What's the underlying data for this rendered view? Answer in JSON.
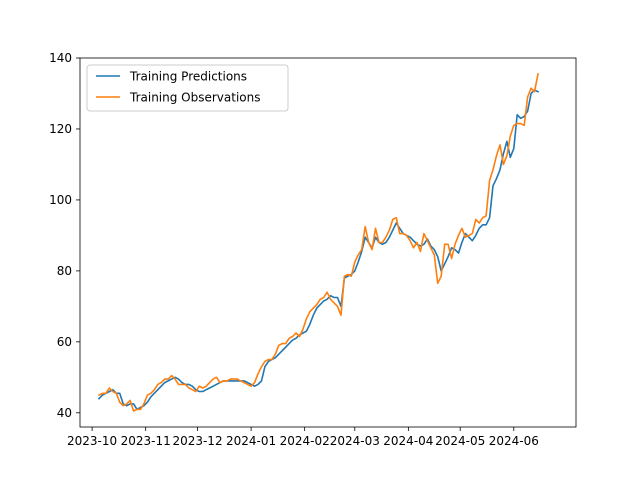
{
  "chart_data": {
    "type": "line",
    "title": "",
    "xlabel": "",
    "ylabel": "",
    "x_axis": {
      "min": "2023-09-24",
      "max": "2024-07-07",
      "ticks": [
        {
          "date": "2023-10-01",
          "label": "2023-10"
        },
        {
          "date": "2023-11-01",
          "label": "2023-11"
        },
        {
          "date": "2023-12-01",
          "label": "2023-12"
        },
        {
          "date": "2024-01-01",
          "label": "2024-01"
        },
        {
          "date": "2024-02-01",
          "label": "2024-02"
        },
        {
          "date": "2024-03-01",
          "label": "2024-03"
        },
        {
          "date": "2024-04-01",
          "label": "2024-04"
        },
        {
          "date": "2024-05-01",
          "label": "2024-05"
        },
        {
          "date": "2024-06-01",
          "label": "2024-06"
        }
      ]
    },
    "y_axis": {
      "min": 36,
      "max": 140,
      "ticks": [
        40,
        60,
        80,
        100,
        120,
        140
      ]
    },
    "grid": false,
    "legend_position": "top-left",
    "series": [
      {
        "name": "Training Predictions",
        "color": "#1f77b4",
        "points": [
          [
            "2023-10-05",
            44.0
          ],
          [
            "2023-10-07",
            45.0
          ],
          [
            "2023-10-09",
            45.5
          ],
          [
            "2023-10-11",
            46.0
          ],
          [
            "2023-10-13",
            46.5
          ],
          [
            "2023-10-15",
            45.5
          ],
          [
            "2023-10-17",
            45.5
          ],
          [
            "2023-10-19",
            42.5
          ],
          [
            "2023-10-21",
            42.0
          ],
          [
            "2023-10-23",
            42.5
          ],
          [
            "2023-10-25",
            42.5
          ],
          [
            "2023-10-27",
            41.0
          ],
          [
            "2023-10-29",
            41.5
          ],
          [
            "2023-10-31",
            42.0
          ],
          [
            "2023-11-02",
            43.0
          ],
          [
            "2023-11-04",
            44.5
          ],
          [
            "2023-11-06",
            45.5
          ],
          [
            "2023-11-08",
            46.5
          ],
          [
            "2023-11-10",
            47.5
          ],
          [
            "2023-11-12",
            48.5
          ],
          [
            "2023-11-14",
            49.0
          ],
          [
            "2023-11-16",
            49.5
          ],
          [
            "2023-11-18",
            50.0
          ],
          [
            "2023-11-20",
            49.5
          ],
          [
            "2023-11-22",
            48.5
          ],
          [
            "2023-11-24",
            48.0
          ],
          [
            "2023-11-26",
            48.0
          ],
          [
            "2023-11-28",
            47.5
          ],
          [
            "2023-11-30",
            46.5
          ],
          [
            "2023-12-02",
            46.0
          ],
          [
            "2023-12-04",
            46.0
          ],
          [
            "2023-12-06",
            46.5
          ],
          [
            "2023-12-08",
            47.0
          ],
          [
            "2023-12-10",
            47.5
          ],
          [
            "2023-12-12",
            48.0
          ],
          [
            "2023-12-14",
            48.5
          ],
          [
            "2023-12-16",
            49.0
          ],
          [
            "2023-12-18",
            49.0
          ],
          [
            "2023-12-20",
            49.0
          ],
          [
            "2023-12-22",
            49.0
          ],
          [
            "2023-12-24",
            49.0
          ],
          [
            "2023-12-26",
            49.0
          ],
          [
            "2023-12-28",
            49.0
          ],
          [
            "2023-12-30",
            48.5
          ],
          [
            "2024-01-01",
            48.0
          ],
          [
            "2024-01-03",
            47.5
          ],
          [
            "2024-01-05",
            48.0
          ],
          [
            "2024-01-07",
            49.0
          ],
          [
            "2024-01-09",
            53.0
          ],
          [
            "2024-01-11",
            54.5
          ],
          [
            "2024-01-13",
            55.0
          ],
          [
            "2024-01-15",
            55.5
          ],
          [
            "2024-01-17",
            56.5
          ],
          [
            "2024-01-19",
            57.5
          ],
          [
            "2024-01-21",
            58.5
          ],
          [
            "2024-01-23",
            59.5
          ],
          [
            "2024-01-25",
            60.5
          ],
          [
            "2024-01-27",
            61.0
          ],
          [
            "2024-01-29",
            62.0
          ],
          [
            "2024-01-31",
            62.5
          ],
          [
            "2024-02-02",
            63.0
          ],
          [
            "2024-02-04",
            65.0
          ],
          [
            "2024-02-06",
            67.5
          ],
          [
            "2024-02-08",
            69.5
          ],
          [
            "2024-02-10",
            70.5
          ],
          [
            "2024-02-12",
            71.5
          ],
          [
            "2024-02-14",
            72.0
          ],
          [
            "2024-02-16",
            73.0
          ],
          [
            "2024-02-18",
            72.5
          ],
          [
            "2024-02-20",
            72.5
          ],
          [
            "2024-02-22",
            70.0
          ],
          [
            "2024-02-24",
            78.0
          ],
          [
            "2024-02-26",
            78.5
          ],
          [
            "2024-02-28",
            79.0
          ],
          [
            "2024-03-01",
            80.0
          ],
          [
            "2024-03-03",
            82.5
          ],
          [
            "2024-03-05",
            85.5
          ],
          [
            "2024-03-07",
            89.5
          ],
          [
            "2024-03-09",
            88.0
          ],
          [
            "2024-03-11",
            86.5
          ],
          [
            "2024-03-13",
            89.5
          ],
          [
            "2024-03-15",
            88.0
          ],
          [
            "2024-03-17",
            87.5
          ],
          [
            "2024-03-19",
            88.0
          ],
          [
            "2024-03-21",
            89.5
          ],
          [
            "2024-03-23",
            91.5
          ],
          [
            "2024-03-25",
            93.5
          ],
          [
            "2024-03-27",
            92.0
          ],
          [
            "2024-03-29",
            90.5
          ],
          [
            "2024-03-31",
            90.0
          ],
          [
            "2024-04-02",
            89.5
          ],
          [
            "2024-04-04",
            88.5
          ],
          [
            "2024-04-06",
            87.5
          ],
          [
            "2024-04-08",
            87.0
          ],
          [
            "2024-04-10",
            87.5
          ],
          [
            "2024-04-12",
            89.0
          ],
          [
            "2024-04-14",
            87.0
          ],
          [
            "2024-04-16",
            86.0
          ],
          [
            "2024-04-18",
            84.0
          ],
          [
            "2024-04-20",
            80.0
          ],
          [
            "2024-04-22",
            82.0
          ],
          [
            "2024-04-24",
            84.0
          ],
          [
            "2024-04-26",
            86.5
          ],
          [
            "2024-04-28",
            86.0
          ],
          [
            "2024-04-30",
            85.0
          ],
          [
            "2024-05-02",
            88.0
          ],
          [
            "2024-05-04",
            90.5
          ],
          [
            "2024-05-06",
            89.5
          ],
          [
            "2024-05-08",
            88.5
          ],
          [
            "2024-05-10",
            90.0
          ],
          [
            "2024-05-12",
            92.0
          ],
          [
            "2024-05-14",
            93.0
          ],
          [
            "2024-05-16",
            93.0
          ],
          [
            "2024-05-18",
            95.0
          ],
          [
            "2024-05-20",
            104.0
          ],
          [
            "2024-05-22",
            106.0
          ],
          [
            "2024-05-24",
            108.5
          ],
          [
            "2024-05-26",
            113.0
          ],
          [
            "2024-05-28",
            116.5
          ],
          [
            "2024-05-30",
            112.0
          ],
          [
            "2024-06-01",
            114.5
          ],
          [
            "2024-06-03",
            124.0
          ],
          [
            "2024-06-05",
            123.0
          ],
          [
            "2024-06-07",
            123.5
          ],
          [
            "2024-06-09",
            125.0
          ],
          [
            "2024-06-11",
            130.0
          ],
          [
            "2024-06-13",
            131.0
          ],
          [
            "2024-06-15",
            130.5
          ]
        ]
      },
      {
        "name": "Training Observations",
        "color": "#ff7f0e",
        "points": [
          [
            "2023-10-05",
            45.0
          ],
          [
            "2023-10-07",
            45.5
          ],
          [
            "2023-10-09",
            45.5
          ],
          [
            "2023-10-11",
            47.0
          ],
          [
            "2023-10-13",
            46.0
          ],
          [
            "2023-10-15",
            45.5
          ],
          [
            "2023-10-17",
            43.0
          ],
          [
            "2023-10-19",
            42.0
          ],
          [
            "2023-10-21",
            42.5
          ],
          [
            "2023-10-23",
            43.5
          ],
          [
            "2023-10-25",
            40.5
          ],
          [
            "2023-10-27",
            41.0
          ],
          [
            "2023-10-29",
            41.0
          ],
          [
            "2023-10-31",
            42.5
          ],
          [
            "2023-11-02",
            45.0
          ],
          [
            "2023-11-04",
            45.5
          ],
          [
            "2023-11-06",
            46.5
          ],
          [
            "2023-11-08",
            48.0
          ],
          [
            "2023-11-10",
            48.5
          ],
          [
            "2023-11-12",
            49.5
          ],
          [
            "2023-11-14",
            49.5
          ],
          [
            "2023-11-16",
            50.5
          ],
          [
            "2023-11-18",
            49.5
          ],
          [
            "2023-11-20",
            48.0
          ],
          [
            "2023-11-22",
            48.0
          ],
          [
            "2023-11-24",
            48.0
          ],
          [
            "2023-11-26",
            47.0
          ],
          [
            "2023-11-28",
            46.5
          ],
          [
            "2023-11-30",
            46.0
          ],
          [
            "2023-12-02",
            47.5
          ],
          [
            "2023-12-04",
            47.0
          ],
          [
            "2023-12-06",
            47.5
          ],
          [
            "2023-12-08",
            48.5
          ],
          [
            "2023-12-10",
            49.5
          ],
          [
            "2023-12-12",
            50.0
          ],
          [
            "2023-12-14",
            48.5
          ],
          [
            "2023-12-16",
            49.0
          ],
          [
            "2023-12-18",
            49.0
          ],
          [
            "2023-12-20",
            49.5
          ],
          [
            "2023-12-22",
            49.5
          ],
          [
            "2023-12-24",
            49.5
          ],
          [
            "2023-12-26",
            49.0
          ],
          [
            "2023-12-28",
            48.5
          ],
          [
            "2023-12-30",
            48.0
          ],
          [
            "2024-01-01",
            47.5
          ],
          [
            "2024-01-03",
            48.5
          ],
          [
            "2024-01-05",
            51.0
          ],
          [
            "2024-01-07",
            53.0
          ],
          [
            "2024-01-09",
            54.5
          ],
          [
            "2024-01-11",
            55.0
          ],
          [
            "2024-01-13",
            55.0
          ],
          [
            "2024-01-15",
            56.5
          ],
          [
            "2024-01-17",
            59.0
          ],
          [
            "2024-01-19",
            59.5
          ],
          [
            "2024-01-21",
            59.5
          ],
          [
            "2024-01-23",
            61.0
          ],
          [
            "2024-01-25",
            61.5
          ],
          [
            "2024-01-27",
            62.5
          ],
          [
            "2024-01-29",
            61.5
          ],
          [
            "2024-01-31",
            63.5
          ],
          [
            "2024-02-02",
            66.5
          ],
          [
            "2024-02-04",
            68.5
          ],
          [
            "2024-02-06",
            69.5
          ],
          [
            "2024-02-08",
            70.5
          ],
          [
            "2024-02-10",
            72.0
          ],
          [
            "2024-02-12",
            72.5
          ],
          [
            "2024-02-14",
            74.0
          ],
          [
            "2024-02-16",
            72.0
          ],
          [
            "2024-02-18",
            71.0
          ],
          [
            "2024-02-20",
            70.0
          ],
          [
            "2024-02-22",
            67.5
          ],
          [
            "2024-02-24",
            78.5
          ],
          [
            "2024-02-26",
            79.0
          ],
          [
            "2024-02-28",
            78.5
          ],
          [
            "2024-03-01",
            82.5
          ],
          [
            "2024-03-03",
            84.5
          ],
          [
            "2024-03-05",
            86.0
          ],
          [
            "2024-03-07",
            92.5
          ],
          [
            "2024-03-09",
            88.0
          ],
          [
            "2024-03-11",
            86.0
          ],
          [
            "2024-03-13",
            92.0
          ],
          [
            "2024-03-15",
            88.0
          ],
          [
            "2024-03-17",
            88.0
          ],
          [
            "2024-03-19",
            89.5
          ],
          [
            "2024-03-21",
            91.5
          ],
          [
            "2024-03-23",
            94.5
          ],
          [
            "2024-03-25",
            95.0
          ],
          [
            "2024-03-27",
            90.5
          ],
          [
            "2024-03-29",
            90.5
          ],
          [
            "2024-03-31",
            90.0
          ],
          [
            "2024-04-02",
            88.5
          ],
          [
            "2024-04-04",
            86.5
          ],
          [
            "2024-04-06",
            88.0
          ],
          [
            "2024-04-08",
            85.5
          ],
          [
            "2024-04-10",
            90.5
          ],
          [
            "2024-04-12",
            88.5
          ],
          [
            "2024-04-14",
            86.5
          ],
          [
            "2024-04-16",
            84.5
          ],
          [
            "2024-04-18",
            76.5
          ],
          [
            "2024-04-20",
            78.5
          ],
          [
            "2024-04-22",
            87.5
          ],
          [
            "2024-04-24",
            87.5
          ],
          [
            "2024-04-26",
            83.5
          ],
          [
            "2024-04-28",
            87.5
          ],
          [
            "2024-04-30",
            90.0
          ],
          [
            "2024-05-02",
            92.0
          ],
          [
            "2024-05-04",
            89.5
          ],
          [
            "2024-05-06",
            90.0
          ],
          [
            "2024-05-08",
            90.5
          ],
          [
            "2024-05-10",
            94.5
          ],
          [
            "2024-05-12",
            93.5
          ],
          [
            "2024-05-14",
            95.0
          ],
          [
            "2024-05-16",
            95.5
          ],
          [
            "2024-05-18",
            105.5
          ],
          [
            "2024-05-20",
            108.5
          ],
          [
            "2024-05-22",
            112.5
          ],
          [
            "2024-05-24",
            115.5
          ],
          [
            "2024-05-26",
            110.0
          ],
          [
            "2024-05-28",
            112.5
          ],
          [
            "2024-05-30",
            118.0
          ],
          [
            "2024-06-01",
            121.0
          ],
          [
            "2024-06-03",
            121.5
          ],
          [
            "2024-06-05",
            121.5
          ],
          [
            "2024-06-07",
            121.0
          ],
          [
            "2024-06-09",
            129.0
          ],
          [
            "2024-06-11",
            131.5
          ],
          [
            "2024-06-13",
            130.5
          ],
          [
            "2024-06-15",
            135.5
          ]
        ]
      }
    ]
  }
}
